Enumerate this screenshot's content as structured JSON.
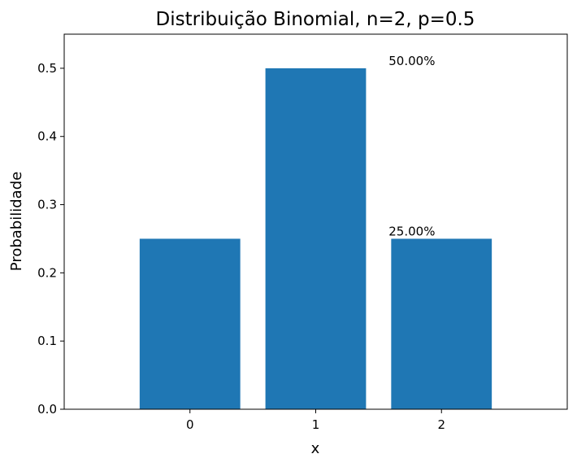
{
  "chart_data": {
    "type": "bar",
    "title": "Distribuição Binomial, n=2, p=0.5",
    "xlabel": "x",
    "ylabel": "Probabilidade",
    "categories": [
      "0",
      "1",
      "2"
    ],
    "x": [
      0,
      1,
      2
    ],
    "values": [
      0.25,
      0.5,
      0.25
    ],
    "xlim": [
      -1,
      3
    ],
    "ylim": [
      0,
      0.55
    ],
    "xticks": [
      "0",
      "1",
      "2"
    ],
    "yticks": [
      "0.0",
      "0.1",
      "0.2",
      "0.3",
      "0.4",
      "0.5"
    ],
    "bar_color": "#1f77b4",
    "grid": false,
    "annotations": [
      {
        "text": "50.00%",
        "x": 1.58,
        "y": 0.5
      },
      {
        "text": "25.00%",
        "x": 1.58,
        "y": 0.25
      }
    ]
  }
}
